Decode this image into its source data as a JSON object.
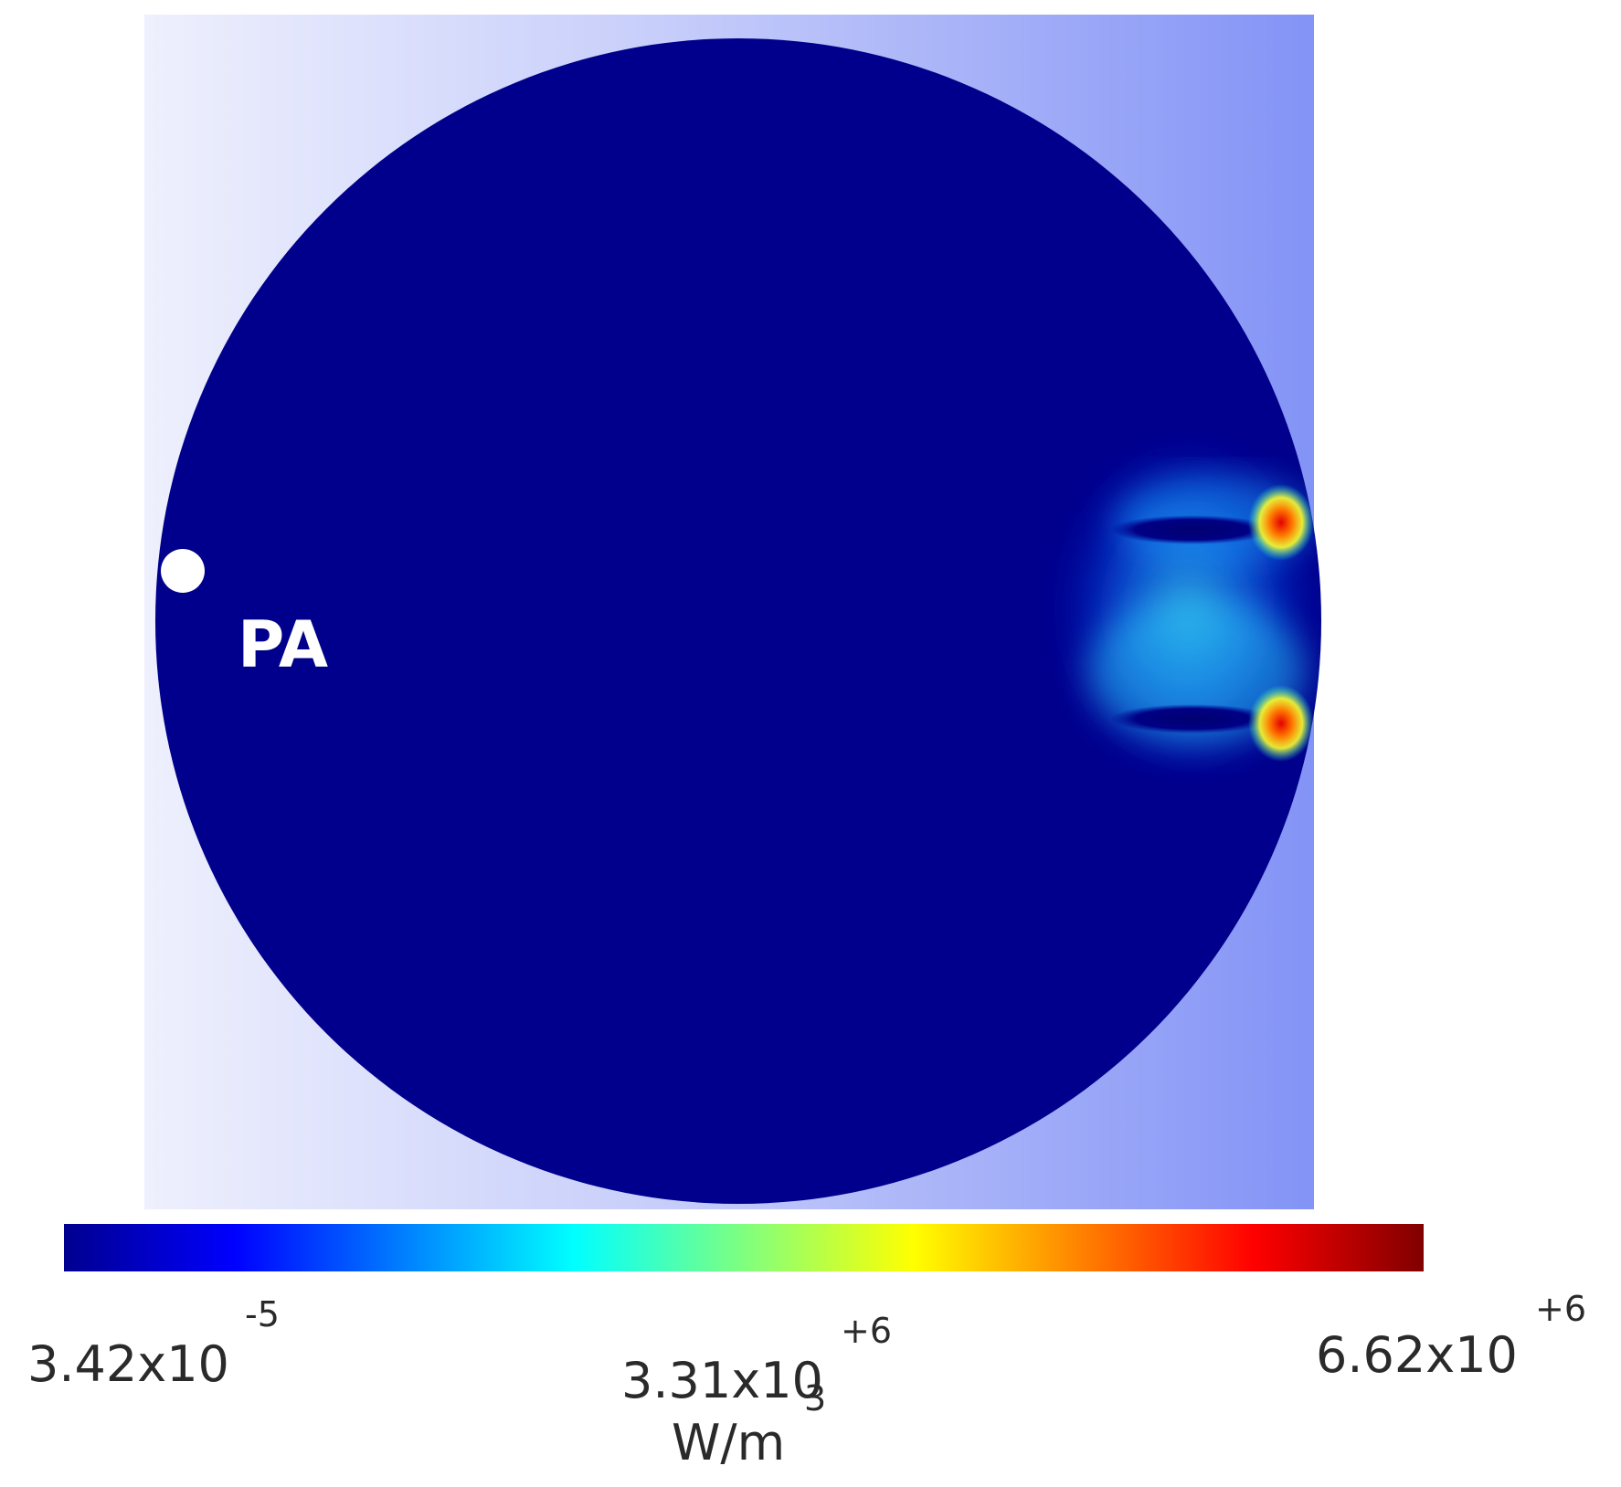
{
  "figure": {
    "marker_label": "PA",
    "colors": {
      "domain_fill": "#00008c",
      "background_left": "#e9ecfc",
      "background_right": "#8696f7",
      "marker": "#ffffff"
    }
  },
  "colorbar": {
    "colormap": "jet",
    "min": {
      "mantissa": "3.42x10",
      "exponent": "-5",
      "value": 3.42e-05
    },
    "mid": {
      "mantissa": "3.31x10",
      "exponent": "+6",
      "value": 3310000
    },
    "max": {
      "mantissa": "6.62x10",
      "exponent": "+6",
      "value": 6620000
    },
    "unit_base": "W/m",
    "unit_exponent": "3"
  }
}
